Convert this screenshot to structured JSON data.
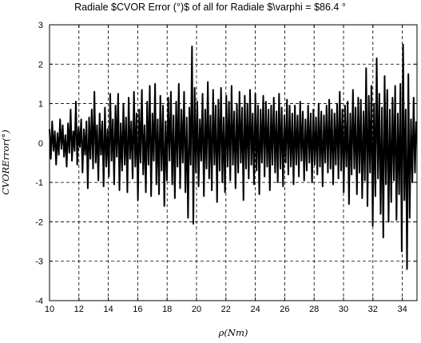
{
  "chart_data": {
    "type": "line",
    "title": "Radiale $CVOR Error (°)$ of all for Radiale $\\varphi = $86.4 °",
    "xlabel": "ρ(Nm)",
    "ylabel": "CVORError(°)",
    "xlim": [
      10,
      35
    ],
    "ylim": [
      -4,
      3
    ],
    "xticks": [
      "10",
      "12",
      "14",
      "16",
      "18",
      "20",
      "22",
      "24",
      "26",
      "28",
      "30",
      "32",
      "34"
    ],
    "yticks": [
      "-4",
      "-3",
      "-2",
      "-1",
      "0",
      "1",
      "2",
      "3"
    ],
    "grid": true,
    "series": [
      {
        "x_start": 10,
        "x_end": 34.95,
        "color": "#000000",
        "values": [
          0.35,
          -0.4,
          0.55,
          -0.2,
          0.3,
          -0.55,
          0.25,
          -0.3,
          0.6,
          -0.15,
          0.45,
          -0.35,
          0.2,
          -0.6,
          0.5,
          -0.25,
          0.85,
          -0.45,
          0.3,
          -0.2,
          1.05,
          -0.55,
          0.4,
          -0.1,
          0.6,
          -0.75,
          0.35,
          -0.3,
          0.55,
          -1.15,
          0.65,
          -0.4,
          0.85,
          -0.65,
          1.3,
          -0.5,
          0.45,
          -0.95,
          0.75,
          -0.3,
          0.55,
          -1.1,
          0.9,
          -0.6,
          0.35,
          -0.85,
          1.25,
          -0.45,
          0.6,
          -1.05,
          0.95,
          -0.35,
          1.25,
          -1.2,
          0.5,
          -0.7,
          1.0,
          -0.55,
          0.65,
          -1.25,
          1.15,
          -0.4,
          0.55,
          -0.9,
          1.3,
          -0.6,
          0.75,
          -1.45,
          0.85,
          -0.5,
          1.35,
          -0.8,
          0.45,
          -1.25,
          1.05,
          -0.55,
          1.45,
          -1.35,
          0.75,
          -0.45,
          1.5,
          -1.05,
          0.6,
          -1.3,
          1.2,
          -0.7,
          0.95,
          -1.6,
          0.55,
          -0.95,
          1.15,
          -0.45,
          1.3,
          -1.05,
          0.7,
          -1.4,
          1.05,
          -0.6,
          1.5,
          -1.15,
          0.85,
          -0.5,
          1.3,
          -1.25,
          0.65,
          -1.9,
          0.9,
          -0.55,
          2.45,
          -2.05,
          1.4,
          -0.75,
          1.05,
          -1.1,
          0.6,
          -0.45,
          1.25,
          -1.35,
          0.85,
          -0.65,
          1.55,
          -0.9,
          0.7,
          -1.2,
          1.35,
          -0.55,
          0.95,
          -1.5,
          1.1,
          -0.7,
          1.4,
          -1.0,
          0.65,
          -1.25,
          1.2,
          -0.6,
          1.05,
          -0.95,
          1.45,
          -0.55,
          0.8,
          -1.15,
          1.0,
          -0.75,
          1.3,
          -0.5,
          0.9,
          -1.45,
          1.2,
          -0.65,
          1.0,
          -0.9,
          1.35,
          -0.55,
          0.75,
          -1.05,
          1.25,
          -0.7,
          0.95,
          -1.3,
          0.85,
          -0.5,
          1.2,
          -0.85,
          1.05,
          -0.6,
          0.85,
          -1.2,
          0.95,
          -0.55,
          1.15,
          -0.75,
          0.8,
          -1.0,
          1.25,
          -0.65,
          0.9,
          -1.1,
          0.7,
          -0.5,
          1.1,
          -0.8,
          0.95,
          -0.6,
          0.75,
          -1.05,
          0.95,
          -0.55,
          0.7,
          -0.85,
          1.05,
          -0.45,
          0.8,
          -0.95,
          0.6,
          -0.7,
          0.95,
          -0.5,
          0.75,
          -1.0,
          0.85,
          -0.55,
          0.65,
          -0.8,
          1.0,
          -0.6,
          0.8,
          -1.1,
          0.7,
          -0.5,
          0.95,
          -0.75,
          1.1,
          -0.65,
          0.85,
          -1.05,
          0.75,
          -0.55,
          1.0,
          -0.9,
          1.3,
          -0.7,
          0.85,
          -1.25,
          0.95,
          -0.6,
          1.05,
          -1.55,
          0.75,
          -0.8,
          1.35,
          -0.65,
          0.9,
          -1.3,
          1.15,
          -0.75,
          1.1,
          -1.4,
          0.8,
          -0.95,
          1.9,
          -1.6,
          1.2,
          -0.75,
          1.45,
          -2.1,
          1.0,
          -1.35,
          2.15,
          -0.9,
          1.25,
          -1.8,
          0.9,
          -2.4,
          1.7,
          -1.05,
          1.35,
          -2.0,
          0.85,
          -1.5,
          1.15,
          -0.95,
          1.45,
          -1.95,
          0.75,
          -1.3,
          1.5,
          -2.75,
          2.5,
          -1.45,
          0.85,
          -3.2,
          1.75,
          -1.9,
          0.6,
          -1.0,
          1.15,
          -0.75,
          0.55
        ]
      }
    ]
  }
}
